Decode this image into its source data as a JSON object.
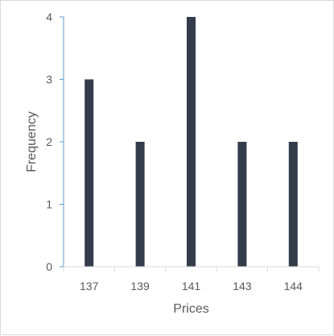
{
  "chart_data": {
    "type": "bar",
    "title": "",
    "xlabel": "Prices",
    "ylabel": "Frequency",
    "categories": [
      "137",
      "139",
      "141",
      "143",
      "144"
    ],
    "values": [
      3,
      2,
      4,
      2,
      2
    ],
    "ylim": [
      0,
      4
    ],
    "yticks": [
      "0",
      "1",
      "2",
      "3",
      "4"
    ],
    "grid": false,
    "legend": "none",
    "colors": {
      "bar": "#323c4b",
      "axis": "#5b9bd5",
      "text": "#595959"
    }
  }
}
